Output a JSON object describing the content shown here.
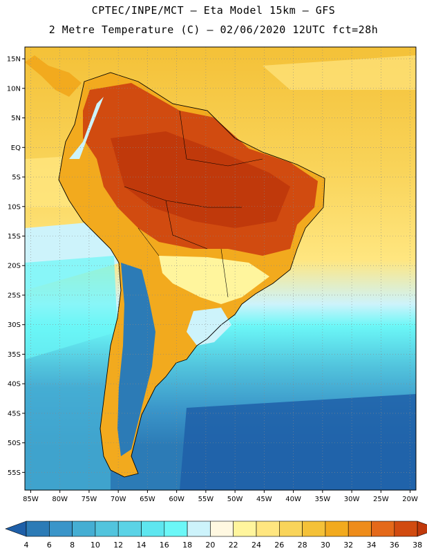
{
  "header": {
    "line1": "CPTEC/INPE/MCT –  Eta Model 15km – GFS",
    "line2": "2 Metre Temperature (C) – 02/06/2020 12UTC fct=28h"
  },
  "map": {
    "lon_range": [
      -86,
      -19
    ],
    "lat_range": [
      -58,
      17
    ],
    "lat_labels": [
      "15N",
      "10N",
      "5N",
      "EQ",
      "5S",
      "10S",
      "15S",
      "20S",
      "25S",
      "30S",
      "35S",
      "40S",
      "45S",
      "50S",
      "55S"
    ],
    "lon_labels": [
      "85W",
      "80W",
      "75W",
      "70W",
      "65W",
      "60W",
      "55W",
      "50W",
      "45W",
      "40W",
      "35W",
      "30W",
      "25W",
      "20W"
    ]
  },
  "colorbar": {
    "ticks": [
      "4",
      "6",
      "8",
      "10",
      "12",
      "14",
      "16",
      "18",
      "20",
      "22",
      "24",
      "26",
      "28",
      "30",
      "32",
      "34",
      "36",
      "38"
    ],
    "colors": [
      "#1e5fa8",
      "#2c7bb6",
      "#3a95c9",
      "#45aed3",
      "#52c4dd",
      "#5bd3e6",
      "#5ee6ef",
      "#6bf7f7",
      "#cdf3fb",
      "#fff8e1",
      "#fff59d",
      "#ffe680",
      "#f9d45a",
      "#f4c138",
      "#f2aa1e",
      "#ee8c1b",
      "#e4691a",
      "#d14b10",
      "#c0390b"
    ]
  }
}
